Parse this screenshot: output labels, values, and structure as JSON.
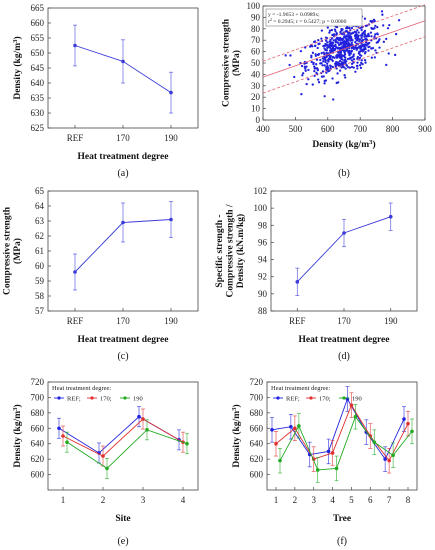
{
  "chart_data": [
    {
      "id": "a",
      "type": "line",
      "panel_label": "(a)",
      "title": "",
      "xlabel": "Heat treatment degree",
      "ylabel": "Density (kg/m³)",
      "categories": [
        "REF",
        "170",
        "190"
      ],
      "series": [
        {
          "values": [
            652.5,
            647.2,
            636.8
          ],
          "err": [
            6.8,
            7.2,
            6.8
          ],
          "color": "#3b3bd9"
        }
      ],
      "ylim": [
        625,
        665
      ],
      "yticks": [
        625,
        630,
        635,
        640,
        645,
        650,
        655,
        660,
        665
      ],
      "grid": false
    },
    {
      "id": "b",
      "type": "scatter",
      "panel_label": "(b)",
      "title": "",
      "xlabel": "Density (kg/m³)",
      "ylabel": "Compressive strength (MPa)",
      "xlim": [
        400,
        900
      ],
      "ylim": [
        0,
        100
      ],
      "xticks": [
        400,
        500,
        600,
        700,
        800,
        900
      ],
      "yticks": [
        0,
        10,
        20,
        30,
        40,
        50,
        60,
        70,
        80,
        90,
        100
      ],
      "point_color": "#2222dd",
      "fit_color": "#e06070",
      "fit": {
        "slope": 0.09894,
        "intercept": -1.9653,
        "band": 14
      },
      "annotation": [
        "y = -1.9653 + 0.0989x;",
        "r² = 0.2945; r = 0.5427; p = 0.0000"
      ],
      "n_points": 620,
      "description_note": ""
    },
    {
      "id": "c",
      "type": "line",
      "panel_label": "(c)",
      "title": "",
      "xlabel": "Heat treatment degree",
      "ylabel": "Compressive strength (MPa)",
      "categories": [
        "REF",
        "170",
        "190"
      ],
      "series": [
        {
          "values": [
            59.6,
            62.9,
            63.1
          ],
          "err": [
            1.2,
            1.3,
            1.2
          ],
          "color": "#3b3bd9"
        }
      ],
      "ylim": [
        57,
        65
      ],
      "yticks": [
        57,
        58,
        59,
        60,
        61,
        62,
        63,
        64,
        65
      ],
      "grid": false
    },
    {
      "id": "d",
      "type": "line",
      "panel_label": "(d)",
      "title": "",
      "xlabel": "Heat treatment degree",
      "ylabel": "Specific strength - Compressive strength / Density (kN.m/kg)",
      "categories": [
        "REF",
        "170",
        "190"
      ],
      "series": [
        {
          "values": [
            91.4,
            97.1,
            99.0
          ],
          "err": [
            1.6,
            1.6,
            1.6
          ],
          "color": "#3b3bd9"
        }
      ],
      "ylim": [
        88,
        102
      ],
      "yticks": [
        88,
        90,
        92,
        94,
        96,
        98,
        100,
        102
      ],
      "grid": false
    },
    {
      "id": "e",
      "type": "line",
      "panel_label": "(e)",
      "title": "",
      "xlabel": "Site",
      "ylabel": "Density (kg/m³)",
      "categories": [
        "1",
        "2",
        "3",
        "4"
      ],
      "legend_title": "Heat treatment degree:",
      "series": [
        {
          "name": "REF;",
          "values": [
            660,
            628,
            675,
            645
          ],
          "err": [
            13,
            13,
            13,
            13
          ],
          "color": "#2222dd"
        },
        {
          "name": "170;",
          "values": [
            650,
            624,
            672,
            642
          ],
          "err": [
            13,
            13,
            13,
            13
          ],
          "color": "#e03030"
        },
        {
          "name": "190",
          "values": [
            642,
            608,
            658,
            640
          ],
          "err": [
            13,
            13,
            13,
            13
          ],
          "color": "#22aa22"
        }
      ],
      "ylim": [
        580,
        720
      ],
      "yticks": [
        600,
        620,
        640,
        660,
        680,
        700,
        720
      ],
      "grid": false
    },
    {
      "id": "f",
      "type": "line",
      "panel_label": "(f)",
      "title": "",
      "xlabel": "Tree",
      "ylabel": "Density (kg/m³)",
      "categories": [
        "1",
        "2",
        "3",
        "4",
        "5",
        "6",
        "7",
        "8"
      ],
      "legend_title": "Heat treatment degree:",
      "series": [
        {
          "name": "REF;",
          "values": [
            658,
            662,
            626,
            630,
            698,
            655,
            620,
            672
          ],
          "err": [
            16,
            16,
            16,
            16,
            16,
            16,
            16,
            16
          ],
          "color": "#2222dd"
        },
        {
          "name": "170;",
          "values": [
            640,
            660,
            620,
            628,
            690,
            650,
            618,
            666
          ],
          "err": [
            16,
            16,
            16,
            16,
            16,
            16,
            16,
            16
          ],
          "color": "#e03030"
        },
        {
          "name": "190",
          "values": [
            618,
            663,
            606,
            608,
            675,
            642,
            625,
            656
          ],
          "err": [
            16,
            16,
            16,
            16,
            16,
            16,
            16,
            16
          ],
          "color": "#22aa22"
        }
      ],
      "ylim": [
        580,
        720
      ],
      "yticks": [
        600,
        620,
        640,
        660,
        680,
        700,
        720
      ],
      "grid": false
    }
  ]
}
